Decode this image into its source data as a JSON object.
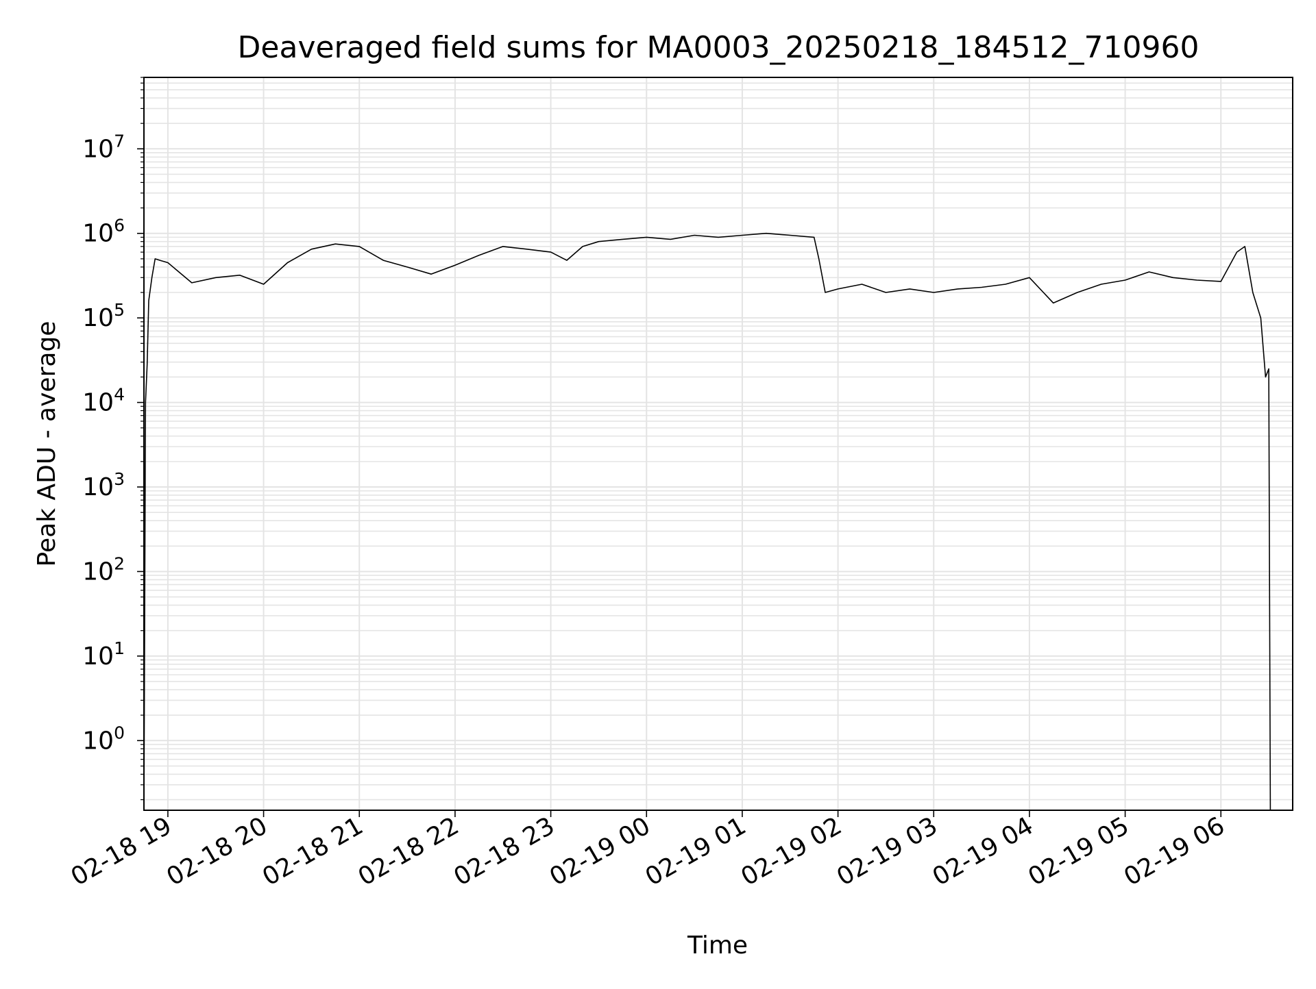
{
  "chart_data": {
    "type": "line",
    "title": "Deaveraged field sums for MA0003_20250218_184512_710960",
    "xlabel": "Time",
    "ylabel": "Peak ADU - average",
    "yscale": "log",
    "ylim": [
      0.15,
      70000000
    ],
    "xlim": [
      "02-18 18:45",
      "02-19 06:45"
    ],
    "x_tick_labels": [
      "02-18 19",
      "02-18 20",
      "02-18 21",
      "02-18 22",
      "02-18 23",
      "02-19 00",
      "02-19 01",
      "02-19 02",
      "02-19 03",
      "02-19 04",
      "02-19 05",
      "02-19 06"
    ],
    "x_tick_times": [
      "02-18 19:00",
      "02-18 20:00",
      "02-18 21:00",
      "02-18 22:00",
      "02-18 23:00",
      "02-19 00:00",
      "02-19 01:00",
      "02-19 02:00",
      "02-19 03:00",
      "02-19 04:00",
      "02-19 05:00",
      "02-19 06:00"
    ],
    "y_tick_values": [
      1,
      10,
      100,
      1000,
      10000,
      100000,
      1000000,
      10000000
    ],
    "y_tick_exponents": [
      "0",
      "1",
      "2",
      "3",
      "4",
      "5",
      "6",
      "7"
    ],
    "y_tick_base": "10",
    "grid": true,
    "line_color": "#000000",
    "series": [
      {
        "x": [
          "02-18 18:45",
          "02-18 18:46",
          "02-18 18:47",
          "02-18 18:48",
          "02-18 18:50",
          "02-18 18:52",
          "02-18 18:55",
          "02-18 19:00",
          "02-18 19:15",
          "02-18 19:30",
          "02-18 19:45",
          "02-18 20:00",
          "02-18 20:15",
          "02-18 20:30",
          "02-18 20:45",
          "02-18 21:00",
          "02-18 21:15",
          "02-18 21:30",
          "02-18 21:45",
          "02-18 22:00",
          "02-18 22:15",
          "02-18 22:30",
          "02-18 22:45",
          "02-18 23:00",
          "02-18 23:10",
          "02-18 23:20",
          "02-18 23:30",
          "02-18 23:45",
          "02-19 00:00",
          "02-19 00:15",
          "02-19 00:30",
          "02-19 00:45",
          "02-19 01:00",
          "02-19 01:15",
          "02-19 01:30",
          "02-19 01:45",
          "02-19 01:48",
          "02-19 01:52",
          "02-19 02:00",
          "02-19 02:15",
          "02-19 02:30",
          "02-19 02:45",
          "02-19 03:00",
          "02-19 03:15",
          "02-19 03:30",
          "02-19 03:45",
          "02-19 04:00",
          "02-19 04:15",
          "02-19 04:30",
          "02-19 04:45",
          "02-19 05:00",
          "02-19 05:15",
          "02-19 05:30",
          "02-19 05:45",
          "02-19 06:00",
          "02-19 06:10",
          "02-19 06:15",
          "02-19 06:20",
          "02-19 06:25",
          "02-19 06:28",
          "02-19 06:30",
          "02-19 06:31"
        ],
        "y": [
          0.15,
          10000,
          28000,
          160000,
          300000,
          500000,
          480000,
          450000,
          260000,
          300000,
          320000,
          250000,
          450000,
          650000,
          750000,
          700000,
          480000,
          400000,
          330000,
          420000,
          550000,
          700000,
          650000,
          600000,
          480000,
          700000,
          800000,
          850000,
          900000,
          850000,
          950000,
          900000,
          950000,
          1000000,
          950000,
          900000,
          500000,
          200000,
          220000,
          250000,
          200000,
          220000,
          200000,
          220000,
          230000,
          250000,
          300000,
          150000,
          200000,
          250000,
          280000,
          350000,
          300000,
          280000,
          270000,
          600000,
          700000,
          200000,
          100000,
          20000,
          25000,
          0.15
        ]
      }
    ]
  }
}
